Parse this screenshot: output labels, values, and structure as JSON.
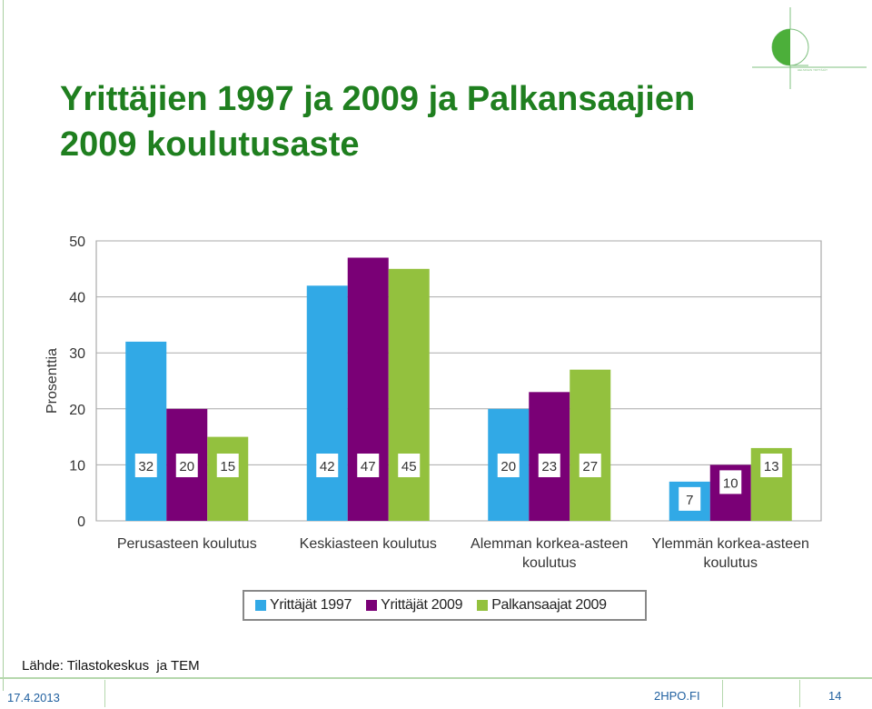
{
  "slide": {
    "title_line1": "Yrittäjien 1997 ja 2009 ja Palkansaajien",
    "title_line2": "2009 koulutusaste",
    "source": "Lähde: Tilastokeskus  ja TEM",
    "date": "17.4.2013",
    "site": "2HPO.FI",
    "page": "14",
    "accent_color": "#1f7f1f",
    "logo_icon": "2hpo-logo-icon"
  },
  "chart_data": {
    "type": "bar",
    "title": "",
    "xlabel": "",
    "ylabel": "Prosenttia",
    "ylim": [
      0,
      50
    ],
    "yticks": [
      0,
      10,
      20,
      30,
      40,
      50
    ],
    "grid": true,
    "legend_position": "bottom",
    "categories": [
      [
        "Perusasteen koulutus"
      ],
      [
        "Keskiasteen koulutus"
      ],
      [
        "Alemman korkea-asteen",
        "koulutus"
      ],
      [
        "Ylemmän korkea-asteen",
        "koulutus"
      ]
    ],
    "series": [
      {
        "name": "Yrittäjät 1997",
        "color": "#31a9e6",
        "values": [
          32,
          42,
          20,
          7
        ]
      },
      {
        "name": "Yrittäjät 2009",
        "color": "#7a0076",
        "values": [
          20,
          47,
          23,
          10
        ]
      },
      {
        "name": "Palkansaajat 2009",
        "color": "#93c13e",
        "values": [
          15,
          45,
          27,
          13
        ]
      }
    ]
  }
}
